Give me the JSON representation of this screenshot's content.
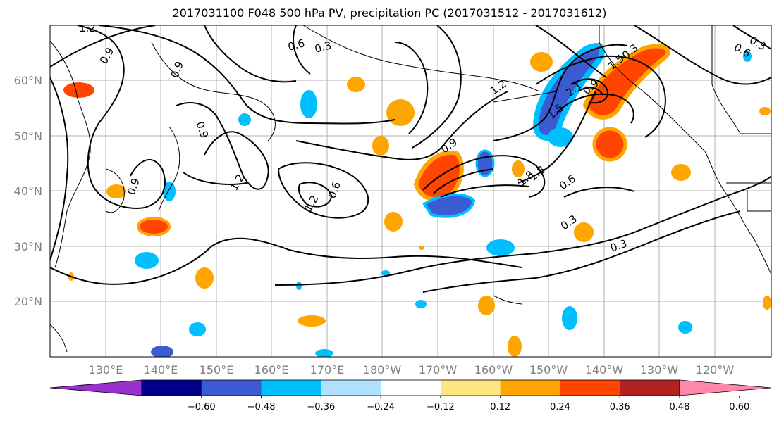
{
  "title": "2017031100 F048 500 hPa PV, precipitation PC (2017031512 - 2017031612)",
  "lat_labels": [
    "60°N",
    "50°N",
    "40°N",
    "30°N",
    "20°N"
  ],
  "lon_labels": [
    "130°E",
    "140°E",
    "150°E",
    "160°E",
    "170°E",
    "180°W",
    "170°W",
    "160°W",
    "150°W",
    "140°W",
    "130°W",
    "120°W"
  ],
  "contour_labels": [
    "1.2",
    "0.9",
    "0.9",
    "0.6",
    "0.3",
    "0.9",
    "1.2",
    "1.2",
    "0.9",
    "0.6",
    "0.9",
    "1.2",
    "1.5",
    "2.1",
    "0.3",
    "1.8",
    "0.3",
    "0.6",
    "0.3",
    "0.3",
    "0.6",
    "0.9",
    "1.5",
    "1.8"
  ],
  "colorbar": {
    "colors": [
      "#9932cc",
      "#00008b",
      "#3a5bd1",
      "#00bfff",
      "#b0e0ff",
      "#ffffff",
      "#ffe680",
      "#ffa500",
      "#ff4500",
      "#b22222",
      "#ff88aa"
    ],
    "tick_labels": [
      "−0.60",
      "−0.48",
      "−0.36",
      "−0.24",
      "−0.12",
      "0.12",
      "0.24",
      "0.36",
      "0.48",
      "0.60"
    ]
  },
  "colors": {
    "grid": "#b0b0b0",
    "coast": "#000000",
    "axis_label": "#808080"
  }
}
